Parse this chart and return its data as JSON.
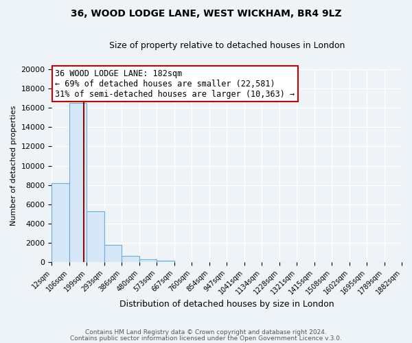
{
  "title1": "36, WOOD LODGE LANE, WEST WICKHAM, BR4 9LZ",
  "title2": "Size of property relative to detached houses in London",
  "xlabel": "Distribution of detached houses by size in London",
  "ylabel": "Number of detached properties",
  "bin_labels": [
    "12sqm",
    "106sqm",
    "199sqm",
    "293sqm",
    "386sqm",
    "480sqm",
    "573sqm",
    "667sqm",
    "760sqm",
    "854sqm",
    "947sqm",
    "1041sqm",
    "1134sqm",
    "1228sqm",
    "1321sqm",
    "1415sqm",
    "1508sqm",
    "1602sqm",
    "1695sqm",
    "1789sqm",
    "1882sqm"
  ],
  "bin_values": [
    8200,
    16500,
    5300,
    1800,
    700,
    290,
    200,
    0,
    0,
    0,
    0,
    0,
    0,
    0,
    0,
    0,
    0,
    0,
    0,
    0,
    0
  ],
  "bar_color": "#d6e8f7",
  "bar_edge_color": "#6aaed6",
  "annotation_title": "36 WOOD LODGE LANE: 182sqm",
  "annotation_line1": "← 69% of detached houses are smaller (22,581)",
  "annotation_line2": "31% of semi-detached houses are larger (10,363) →",
  "annotation_box_facecolor": "#ffffff",
  "annotation_box_edgecolor": "#cc0000",
  "red_line_color": "#990000",
  "ylim": [
    0,
    20000
  ],
  "yticks": [
    0,
    2000,
    4000,
    6000,
    8000,
    10000,
    12000,
    14000,
    16000,
    18000,
    20000
  ],
  "bg_color": "#eef3f8",
  "grid_color": "#ffffff",
  "footer1": "Contains HM Land Registry data © Crown copyright and database right 2024.",
  "footer2": "Contains public sector information licensed under the Open Government Licence v.3.0."
}
